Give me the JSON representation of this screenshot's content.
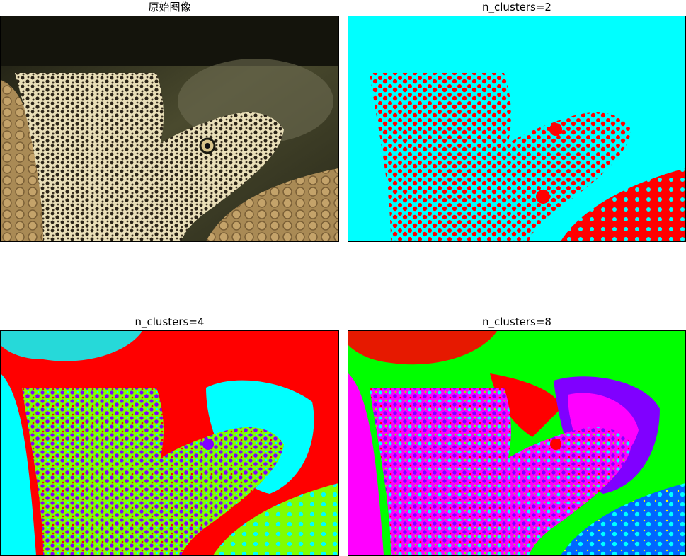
{
  "panels": [
    {
      "title": "原始图像",
      "kind": "original"
    },
    {
      "title": "n_clusters=2",
      "kind": "k2",
      "colors": [
        "#00ffff",
        "#ff0000"
      ]
    },
    {
      "title": "n_clusters=4",
      "kind": "k4",
      "colors": [
        "#ff0000",
        "#00ffff",
        "#80ff00",
        "#8000ff"
      ]
    },
    {
      "title": "n_clusters=8",
      "kind": "k8",
      "colors": [
        "#00ff00",
        "#ff0000",
        "#ff00ff",
        "#8000ff",
        "#00ffff",
        "#0066ff",
        "#ffff00",
        "#80ff00"
      ]
    }
  ]
}
